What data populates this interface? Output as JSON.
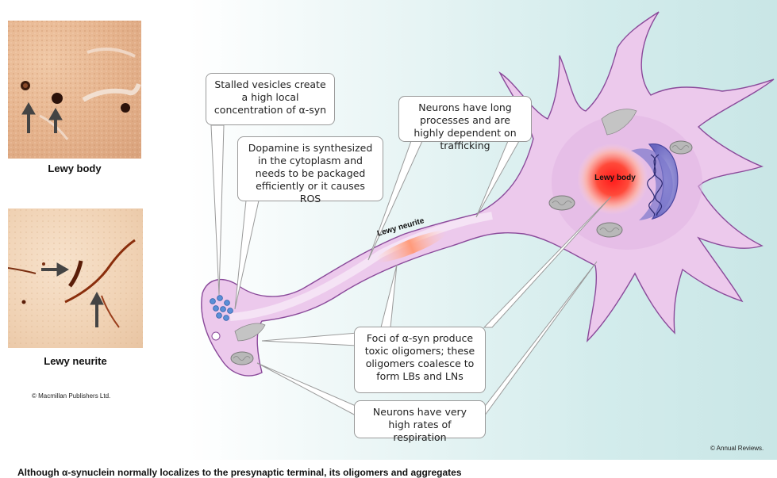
{
  "panels": {
    "lewy_body_caption": "Lewy body",
    "lewy_neurite_caption": "Lewy neurite",
    "left_credit": "© Macmillan Publishers Ltd."
  },
  "diagram": {
    "lewy_body_label": "Lewy body",
    "lewy_neurite_label": "Lewy neurite",
    "credit": "© Annual Reviews.",
    "callouts": {
      "stalled_vesicles": "Stalled vesicles create a high local concentration of α-syn",
      "dopamine": "Dopamine is synthesized in the cytoplasm and needs to be packaged efficiently or it causes ROS",
      "long_processes": "Neurons have long processes and are highly dependent on trafficking",
      "foci": "Foci of α-syn produce toxic oligomers; these oligomers coalesce to form LBs and LNs",
      "respiration": "Neurons have very high rates of respiration"
    }
  },
  "caption": "Although α-synuclein normally localizes to the presynaptic terminal, its oligomers and aggregates"
}
